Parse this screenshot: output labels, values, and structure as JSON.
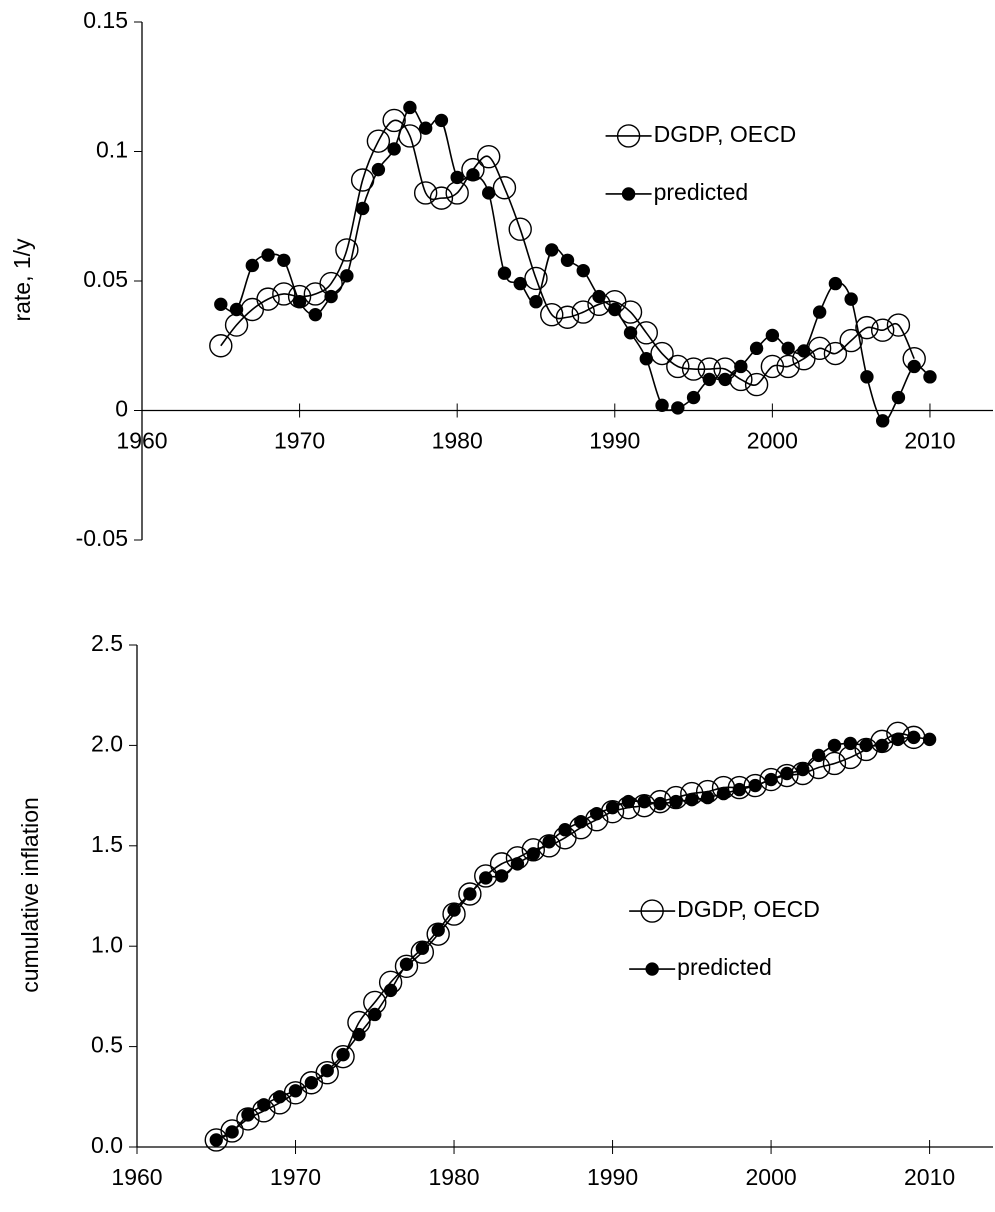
{
  "chart_data": [
    {
      "type": "line",
      "ylabel": "rate, 1/y",
      "x": [
        1965,
        1966,
        1967,
        1968,
        1969,
        1970,
        1971,
        1972,
        1973,
        1974,
        1975,
        1976,
        1977,
        1978,
        1979,
        1980,
        1981,
        1982,
        1983,
        1984,
        1985,
        1986,
        1987,
        1988,
        1989,
        1990,
        1991,
        1992,
        1993,
        1994,
        1995,
        1996,
        1997,
        1998,
        1999,
        2000,
        2001,
        2002,
        2003,
        2004,
        2005,
        2006,
        2007,
        2008,
        2009,
        2010
      ],
      "series": [
        {
          "name": "DGDP, OECD",
          "color": "#000000",
          "marker": "open",
          "values": [
            0.025,
            0.033,
            0.039,
            0.043,
            0.045,
            0.044,
            0.045,
            0.049,
            0.062,
            0.089,
            0.104,
            0.112,
            0.106,
            0.084,
            0.082,
            0.084,
            0.093,
            0.098,
            0.086,
            0.07,
            0.051,
            0.037,
            0.036,
            0.038,
            0.041,
            0.042,
            0.038,
            0.03,
            0.022,
            0.017,
            0.016,
            0.016,
            0.016,
            0.012,
            0.01,
            0.017,
            0.017,
            0.02,
            0.024,
            0.022,
            0.027,
            0.032,
            0.031,
            0.033,
            0.02,
            null
          ]
        },
        {
          "name": "predicted",
          "color": "#000000",
          "marker": "filled",
          "values": [
            0.041,
            0.039,
            0.056,
            0.06,
            0.058,
            0.042,
            0.037,
            0.044,
            0.052,
            0.078,
            0.093,
            0.101,
            0.117,
            0.109,
            0.112,
            0.09,
            0.091,
            0.084,
            0.053,
            0.049,
            0.042,
            0.062,
            0.058,
            0.054,
            0.044,
            0.039,
            0.03,
            0.02,
            0.002,
            0.001,
            0.005,
            0.012,
            0.012,
            0.017,
            0.024,
            0.029,
            0.024,
            0.023,
            0.038,
            0.049,
            0.043,
            0.013,
            -0.004,
            0.005,
            0.017,
            0.013
          ]
        }
      ],
      "xlim": [
        1960,
        2014
      ],
      "xticks": [
        1960,
        1970,
        1980,
        1990,
        2000,
        2010
      ],
      "ylim": [
        -0.05,
        0.15
      ],
      "yticks": [
        -0.05,
        0,
        0.05,
        0.1,
        0.15
      ],
      "legend": "upper right"
    },
    {
      "type": "line",
      "ylabel": "cumulative inflation",
      "x": [
        1965,
        1966,
        1967,
        1968,
        1969,
        1970,
        1971,
        1972,
        1973,
        1974,
        1975,
        1976,
        1977,
        1978,
        1979,
        1980,
        1981,
        1982,
        1983,
        1984,
        1985,
        1986,
        1987,
        1988,
        1989,
        1990,
        1991,
        1992,
        1993,
        1994,
        1995,
        1996,
        1997,
        1998,
        1999,
        2000,
        2001,
        2002,
        2003,
        2004,
        2005,
        2006,
        2007,
        2008,
        2009,
        2010
      ],
      "series": [
        {
          "name": "DGDP, OECD",
          "color": "#000000",
          "marker": "open",
          "values": [
            0.035,
            0.08,
            0.14,
            0.18,
            0.22,
            0.27,
            0.32,
            0.37,
            0.45,
            0.62,
            0.72,
            0.82,
            0.9,
            0.97,
            1.06,
            1.16,
            1.26,
            1.35,
            1.41,
            1.44,
            1.48,
            1.5,
            1.54,
            1.59,
            1.63,
            1.67,
            1.69,
            1.7,
            1.72,
            1.74,
            1.76,
            1.77,
            1.79,
            1.79,
            1.8,
            1.83,
            1.85,
            1.86,
            1.89,
            1.91,
            1.94,
            1.98,
            2.02,
            2.06,
            2.04,
            null
          ]
        },
        {
          "name": "predicted",
          "color": "#000000",
          "marker": "filled",
          "values": [
            0.035,
            0.075,
            0.16,
            0.21,
            0.25,
            0.28,
            0.32,
            0.38,
            0.46,
            0.56,
            0.66,
            0.78,
            0.91,
            0.99,
            1.08,
            1.18,
            1.26,
            1.34,
            1.35,
            1.41,
            1.46,
            1.52,
            1.58,
            1.62,
            1.66,
            1.69,
            1.72,
            1.72,
            1.71,
            1.72,
            1.73,
            1.74,
            1.76,
            1.78,
            1.8,
            1.83,
            1.86,
            1.88,
            1.95,
            2.0,
            2.01,
            2.0,
            2.0,
            2.03,
            2.04,
            2.03
          ]
        }
      ],
      "xlim": [
        1960,
        2014
      ],
      "xticks": [
        1960,
        1970,
        1980,
        1990,
        2000,
        2010
      ],
      "ylim": [
        0,
        2.5
      ],
      "yticks": [
        {
          "value": 0,
          "label": "0.0"
        },
        0.5,
        {
          "value": 1,
          "label": "1.0"
        },
        1.5,
        {
          "value": 2,
          "label": "2.0"
        },
        2.5
      ],
      "legend": "center right"
    }
  ]
}
